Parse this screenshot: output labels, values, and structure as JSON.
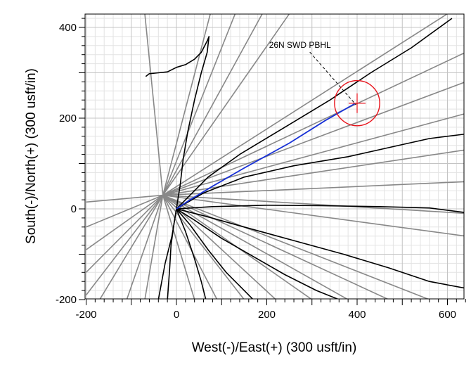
{
  "chart_data": {
    "type": "line",
    "xlabel": "West(-)/East(+) (300 usft/in)",
    "ylabel": "South(-)/North(+) (300 usft/in)",
    "xlim": [
      -200,
      640
    ],
    "ylim": [
      -200,
      430
    ],
    "xticks": [
      -200,
      0,
      200,
      400,
      600
    ],
    "yticks": [
      -200,
      0,
      200,
      400
    ],
    "grid": true,
    "annotation": {
      "text": "26N SWD PBHL",
      "at": [
        397,
        230
      ],
      "text_at": [
        205,
        355
      ]
    },
    "target_circle": {
      "center": [
        400,
        233
      ],
      "radius": 50,
      "color": "#e8131b"
    },
    "colors": {
      "planned": "#1730d6",
      "offset": "#000000",
      "guide": "#888888",
      "target": "#e8131b"
    },
    "planned_well": {
      "name": "",
      "points": [
        [
          0,
          0
        ],
        [
          30,
          20
        ],
        [
          80,
          50
        ],
        [
          150,
          90
        ],
        [
          250,
          145
        ],
        [
          330,
          195
        ],
        [
          395,
          232
        ]
      ]
    },
    "offset_wells": [
      {
        "points": [
          [
            -68,
            292
          ],
          [
            -60,
            298
          ],
          [
            -40,
            300
          ],
          [
            -20,
            302
          ],
          [
            0,
            312
          ],
          [
            20,
            318
          ],
          [
            40,
            330
          ],
          [
            55,
            345
          ],
          [
            68,
            370
          ],
          [
            72,
            380
          ],
          [
            68,
            345
          ],
          [
            55,
            300
          ],
          [
            40,
            240
          ],
          [
            25,
            170
          ],
          [
            15,
            110
          ],
          [
            8,
            50
          ],
          [
            3,
            20
          ],
          [
            0,
            0
          ],
          [
            -5,
            -30
          ],
          [
            -12,
            -80
          ],
          [
            -15,
            -130
          ],
          [
            -20,
            -200
          ]
        ]
      },
      {
        "points": [
          [
            0,
            0
          ],
          [
            30,
            30
          ],
          [
            70,
            70
          ],
          [
            140,
            120
          ],
          [
            240,
            180
          ],
          [
            340,
            240
          ],
          [
            430,
            300
          ],
          [
            520,
            355
          ],
          [
            610,
            420
          ]
        ]
      },
      {
        "points": [
          [
            0,
            0
          ],
          [
            60,
            35
          ],
          [
            150,
            70
          ],
          [
            260,
            95
          ],
          [
            380,
            115
          ],
          [
            470,
            135
          ],
          [
            560,
            155
          ],
          [
            640,
            165
          ]
        ]
      },
      {
        "points": [
          [
            0,
            0
          ],
          [
            80,
            5
          ],
          [
            200,
            8
          ],
          [
            320,
            7
          ],
          [
            450,
            5
          ],
          [
            560,
            2
          ],
          [
            640,
            -8
          ]
        ]
      },
      {
        "points": [
          [
            0,
            0
          ],
          [
            60,
            -15
          ],
          [
            150,
            -40
          ],
          [
            260,
            -70
          ],
          [
            370,
            -100
          ],
          [
            470,
            -130
          ],
          [
            560,
            -160
          ],
          [
            640,
            -175
          ]
        ]
      },
      {
        "points": [
          [
            0,
            0
          ],
          [
            40,
            -25
          ],
          [
            100,
            -65
          ],
          [
            170,
            -105
          ],
          [
            240,
            -145
          ],
          [
            310,
            -180
          ],
          [
            360,
            -200
          ]
        ]
      },
      {
        "points": [
          [
            0,
            0
          ],
          [
            30,
            -35
          ],
          [
            70,
            -90
          ],
          [
            110,
            -140
          ],
          [
            150,
            -180
          ],
          [
            170,
            -200
          ]
        ]
      },
      {
        "points": [
          [
            0,
            0
          ],
          [
            20,
            -50
          ],
          [
            40,
            -110
          ],
          [
            55,
            -160
          ],
          [
            65,
            -200
          ]
        ]
      },
      {
        "points": [
          [
            0,
            0
          ],
          [
            -10,
            -60
          ],
          [
            -25,
            -120
          ],
          [
            -40,
            -200
          ]
        ]
      }
    ],
    "guide_lines": [
      {
        "points": [
          [
            -30,
            30
          ],
          [
            600,
            430
          ]
        ]
      },
      {
        "points": [
          [
            -30,
            30
          ],
          [
            640,
            345
          ]
        ]
      },
      {
        "points": [
          [
            -30,
            30
          ],
          [
            640,
            280
          ]
        ]
      },
      {
        "points": [
          [
            -30,
            30
          ],
          [
            640,
            210
          ]
        ]
      },
      {
        "points": [
          [
            -30,
            30
          ],
          [
            640,
            130
          ]
        ]
      },
      {
        "points": [
          [
            -30,
            30
          ],
          [
            640,
            60
          ]
        ]
      },
      {
        "points": [
          [
            -30,
            30
          ],
          [
            640,
            -10
          ]
        ]
      },
      {
        "points": [
          [
            -30,
            30
          ],
          [
            640,
            -60
          ]
        ]
      },
      {
        "points": [
          [
            -30,
            30
          ],
          [
            560,
            -200
          ]
        ]
      },
      {
        "points": [
          [
            -30,
            30
          ],
          [
            470,
            -200
          ]
        ]
      },
      {
        "points": [
          [
            -30,
            30
          ],
          [
            380,
            -200
          ]
        ]
      },
      {
        "points": [
          [
            -30,
            30
          ],
          [
            300,
            -200
          ]
        ]
      },
      {
        "points": [
          [
            -30,
            30
          ],
          [
            220,
            -200
          ]
        ]
      },
      {
        "points": [
          [
            -30,
            30
          ],
          [
            150,
            -200
          ]
        ]
      },
      {
        "points": [
          [
            -30,
            30
          ],
          [
            90,
            -200
          ]
        ]
      },
      {
        "points": [
          [
            -30,
            30
          ],
          [
            40,
            -200
          ]
        ]
      },
      {
        "points": [
          [
            -30,
            30
          ],
          [
            75,
            430
          ]
        ]
      },
      {
        "points": [
          [
            -30,
            30
          ],
          [
            130,
            430
          ]
        ]
      },
      {
        "points": [
          [
            -30,
            30
          ],
          [
            190,
            430
          ]
        ]
      },
      {
        "points": [
          [
            -30,
            30
          ],
          [
            250,
            430
          ]
        ]
      },
      {
        "points": [
          [
            -30,
            30
          ],
          [
            -200,
            15
          ]
        ]
      },
      {
        "points": [
          [
            -30,
            30
          ],
          [
            -200,
            -40
          ]
        ]
      },
      {
        "points": [
          [
            -30,
            30
          ],
          [
            -200,
            -90
          ]
        ]
      },
      {
        "points": [
          [
            -30,
            30
          ],
          [
            -200,
            -140
          ]
        ]
      },
      {
        "points": [
          [
            -30,
            30
          ],
          [
            -200,
            -190
          ]
        ]
      },
      {
        "points": [
          [
            -30,
            30
          ],
          [
            -170,
            -200
          ]
        ]
      },
      {
        "points": [
          [
            -30,
            30
          ],
          [
            -110,
            -200
          ]
        ]
      },
      {
        "points": [
          [
            -30,
            30
          ],
          [
            -70,
            -200
          ]
        ]
      },
      {
        "points": [
          [
            -30,
            30
          ],
          [
            -70,
            430
          ]
        ]
      }
    ]
  }
}
